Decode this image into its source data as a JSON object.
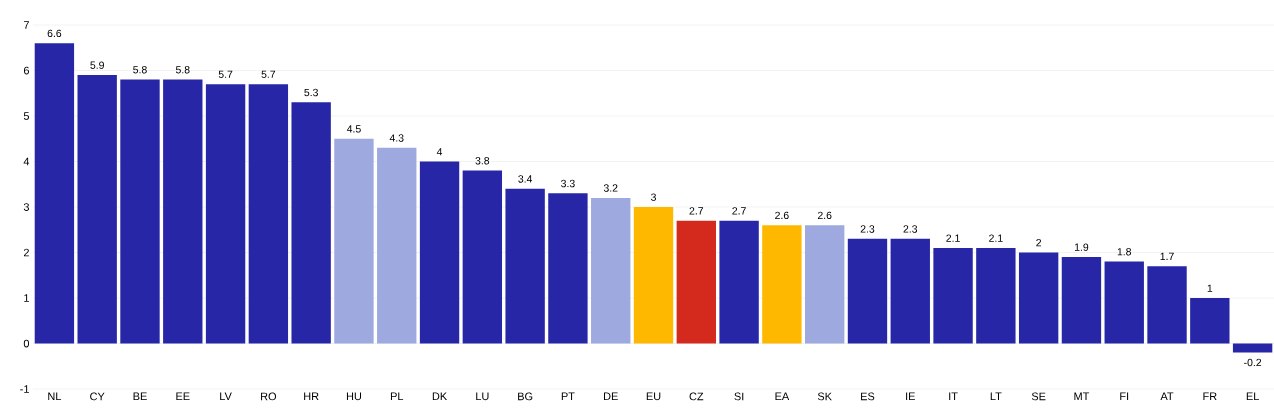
{
  "chart_data": {
    "type": "bar",
    "categories": [
      "NL",
      "CY",
      "BE",
      "EE",
      "LV",
      "RO",
      "HR",
      "HU",
      "PL",
      "DK",
      "LU",
      "BG",
      "PT",
      "DE",
      "EU",
      "CZ",
      "SI",
      "EA",
      "SK",
      "ES",
      "IE",
      "IT",
      "LT",
      "SE",
      "MT",
      "FI",
      "AT",
      "FR",
      "EL"
    ],
    "values": [
      6.6,
      5.9,
      5.8,
      5.8,
      5.7,
      5.7,
      5.3,
      4.5,
      4.3,
      4,
      3.8,
      3.4,
      3.3,
      3.2,
      3,
      2.7,
      2.7,
      2.6,
      2.6,
      2.3,
      2.3,
      2.1,
      2.1,
      2,
      1.9,
      1.8,
      1.7,
      1,
      -0.2
    ],
    "colors": [
      "#2626a6",
      "#2626a6",
      "#2626a6",
      "#2626a6",
      "#2626a6",
      "#2626a6",
      "#2626a6",
      "#9ea9e0",
      "#9ea9e0",
      "#2626a6",
      "#2626a6",
      "#2626a6",
      "#2626a6",
      "#9ea9e0",
      "#ffb800",
      "#d42a1e",
      "#2626a6",
      "#ffb800",
      "#9ea9e0",
      "#2626a6",
      "#2626a6",
      "#2626a6",
      "#2626a6",
      "#2626a6",
      "#2626a6",
      "#2626a6",
      "#2626a6",
      "#2626a6",
      "#2626a6"
    ],
    "ylim": [
      -1,
      7
    ],
    "yticks": [
      -1,
      0,
      1,
      2,
      3,
      4,
      5,
      6,
      7
    ],
    "grid": "y",
    "data_labels": true
  }
}
